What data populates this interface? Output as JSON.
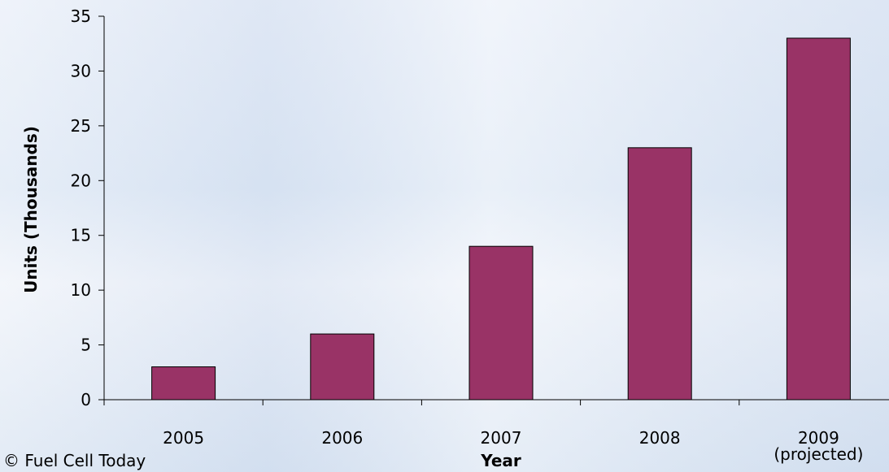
{
  "chart_data": {
    "type": "bar",
    "x_label": "Year",
    "y_label": "Units (Thousands)",
    "source": "© Fuel Cell Today",
    "categories": [
      "2005",
      "2006",
      "2007",
      "2008",
      "2009\n(projected)"
    ],
    "values": [
      3,
      6,
      14,
      23,
      33
    ],
    "color": "#993366",
    "ylim": [
      0,
      35
    ],
    "yticks": [
      0,
      5,
      10,
      15,
      20,
      25,
      30,
      35
    ]
  }
}
